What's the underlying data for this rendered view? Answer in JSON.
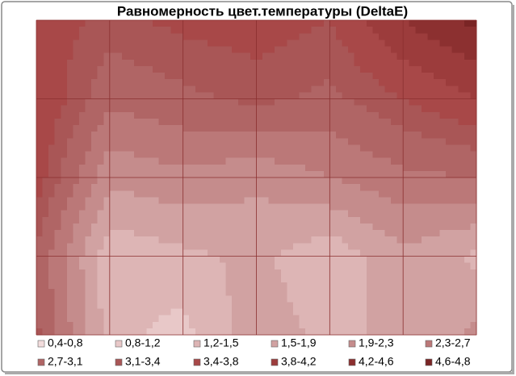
{
  "chart_data": {
    "type": "contour",
    "title": "Равномерность цвет.температуры (DeltaE)",
    "z": [
      [
        3.6,
        3.3,
        3.5,
        3.6,
        3.4,
        4.2,
        4.7
      ],
      [
        3.8,
        2.8,
        3.0,
        3.2,
        3.0,
        3.4,
        3.8
      ],
      [
        3.6,
        2.0,
        2.2,
        2.0,
        2.3,
        2.6,
        2.7
      ],
      [
        3.0,
        1.2,
        1.4,
        1.6,
        1.2,
        1.8,
        1.4
      ],
      [
        3.2,
        1.3,
        1.1,
        1.7,
        1.4,
        1.6,
        2.0
      ]
    ],
    "levels": [
      0.4,
      0.8,
      1.2,
      1.5,
      1.9,
      2.3,
      2.7,
      3.1,
      3.4,
      3.8,
      4.2,
      4.6,
      4.8
    ],
    "series": [
      {
        "name": "0,4-0,8",
        "color": "#f2dcdc"
      },
      {
        "name": "0,8-1,2",
        "color": "#e8c8c8"
      },
      {
        "name": "1,2-1,5",
        "color": "#ddb5b5"
      },
      {
        "name": "1,5-1,9",
        "color": "#d1a2a2"
      },
      {
        "name": "1,9-2,3",
        "color": "#c58c8c"
      },
      {
        "name": "2,3-2,7",
        "color": "#bb7878"
      },
      {
        "name": "2,7-3,1",
        "color": "#b06565"
      },
      {
        "name": "3,1-3,4",
        "color": "#a95656"
      },
      {
        "name": "3,4-3,8",
        "color": "#a84848"
      },
      {
        "name": "3,8-4,2",
        "color": "#9c3c3c"
      },
      {
        "name": "4,2-4,6",
        "color": "#8c3030"
      },
      {
        "name": "4,6-4,8",
        "color": "#7a2525"
      }
    ],
    "grid": true
  }
}
